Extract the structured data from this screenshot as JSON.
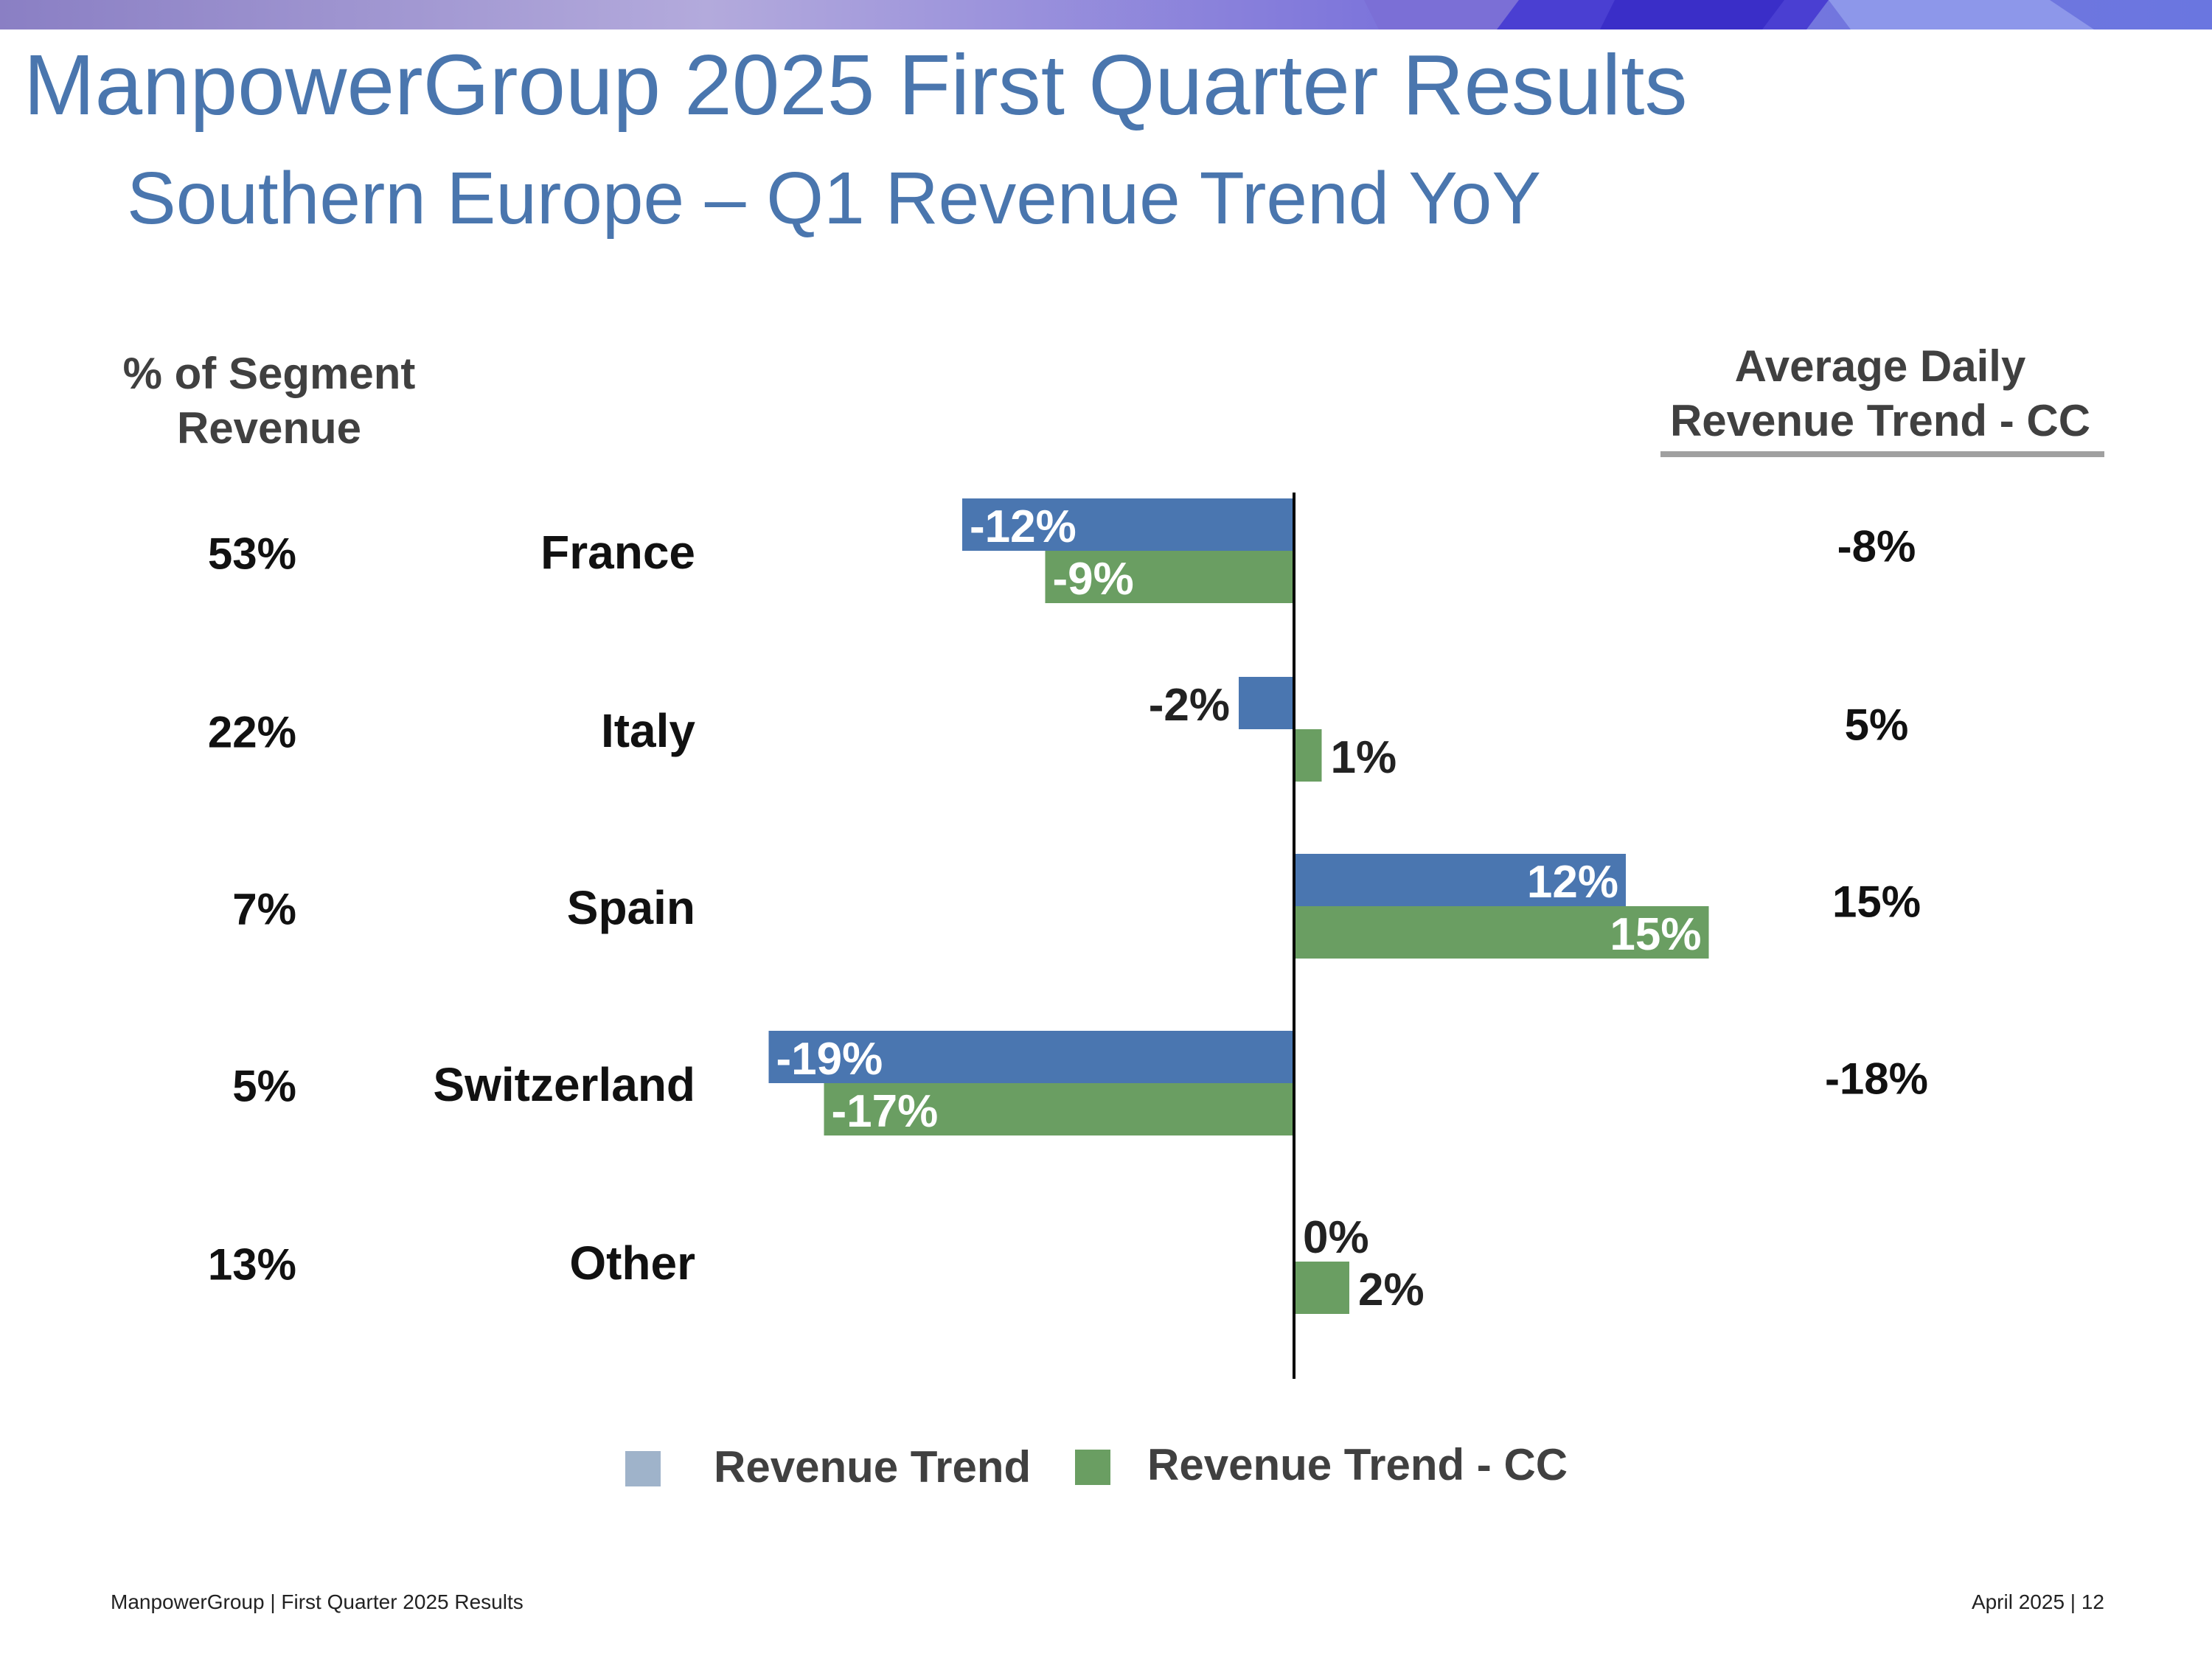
{
  "slide": {
    "title": "ManpowerGroup 2025 First Quarter Results",
    "subtitle": "Southern Europe – Q1 Revenue Trend YoY"
  },
  "headers": {
    "left": "% of Segment Revenue",
    "right": "Average Daily Revenue Trend - CC"
  },
  "legend": [
    {
      "label": "Revenue Trend",
      "color": "#9fb3ca"
    },
    {
      "label": "Revenue Trend - CC",
      "color": "#6a9e62"
    }
  ],
  "colors": {
    "bar_revenue": "#4a76b0",
    "bar_cc": "#6a9e62",
    "axis": "#000000",
    "title": "#4a76ae"
  },
  "chart_data": {
    "type": "bar",
    "orientation": "horizontal",
    "categories": [
      "France",
      "Italy",
      "Spain",
      "Switzerland",
      "Other"
    ],
    "segment_share": [
      "53%",
      "22%",
      "7%",
      "5%",
      "13%"
    ],
    "series": [
      {
        "name": "Revenue Trend",
        "values": [
          -12,
          -2,
          12,
          -19,
          0
        ],
        "labels": [
          "-12%",
          "-2%",
          "12%",
          "-19%",
          "0%"
        ]
      },
      {
        "name": "Revenue Trend - CC",
        "values": [
          -9,
          1,
          15,
          -17,
          2
        ],
        "labels": [
          "-9%",
          "1%",
          "15%",
          "-17%",
          "2%"
        ]
      }
    ],
    "average_daily_trend_cc": [
      "-8%",
      "5%",
      "15%",
      "-18%",
      ""
    ],
    "xlim": [
      -22,
      17
    ],
    "grid": false,
    "legend_position": "bottom"
  },
  "footer": {
    "left": "ManpowerGroup  |  First Quarter 2025 Results",
    "right": "April 2025   |   12"
  }
}
